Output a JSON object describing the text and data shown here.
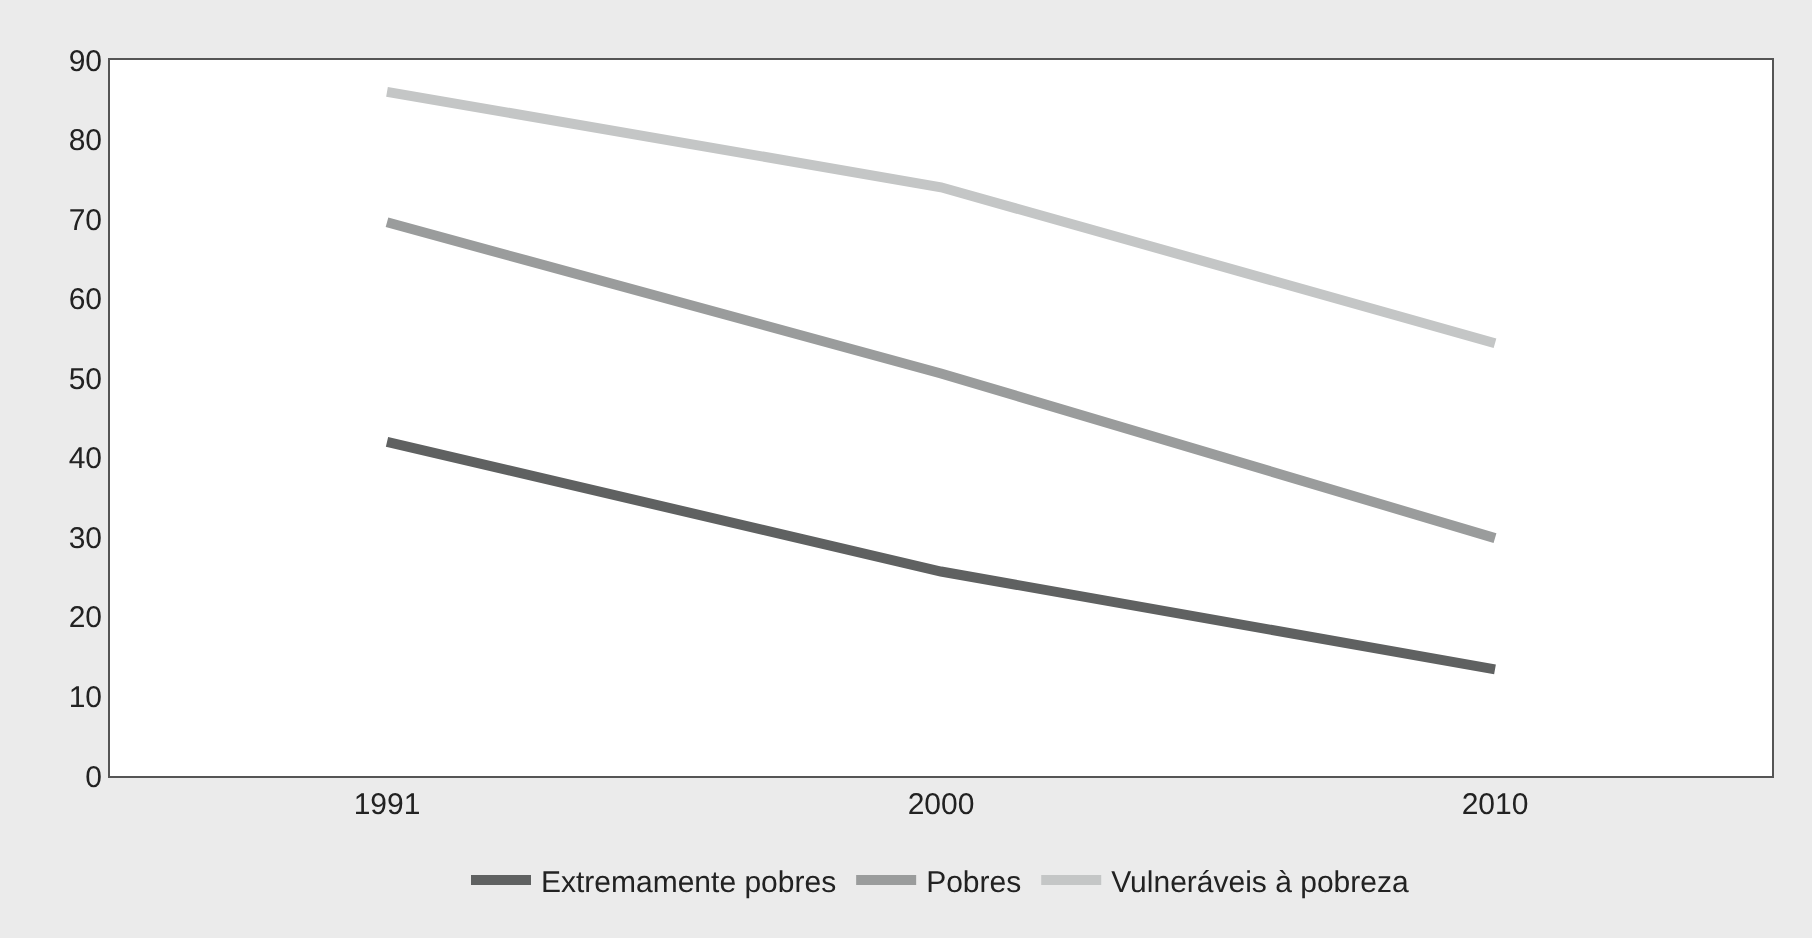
{
  "chart_data": {
    "type": "line",
    "categories": [
      "1991",
      "2000",
      "2010"
    ],
    "series": [
      {
        "name": "Extremamente pobres",
        "color": "#5f6161",
        "values": [
          42,
          25.7,
          13.4
        ]
      },
      {
        "name": "Pobres",
        "color": "#9a9c9c",
        "values": [
          69.6,
          50.6,
          29.9
        ]
      },
      {
        "name": "Vulneráveis à pobreza",
        "color": "#c4c6c6",
        "values": [
          86,
          74,
          54.4
        ]
      }
    ],
    "ylim": [
      0,
      90
    ],
    "yticks": [
      0,
      10,
      20,
      30,
      40,
      50,
      60,
      70,
      80,
      90
    ],
    "legend": "bottom",
    "marker": "none",
    "line_style": "solid"
  }
}
